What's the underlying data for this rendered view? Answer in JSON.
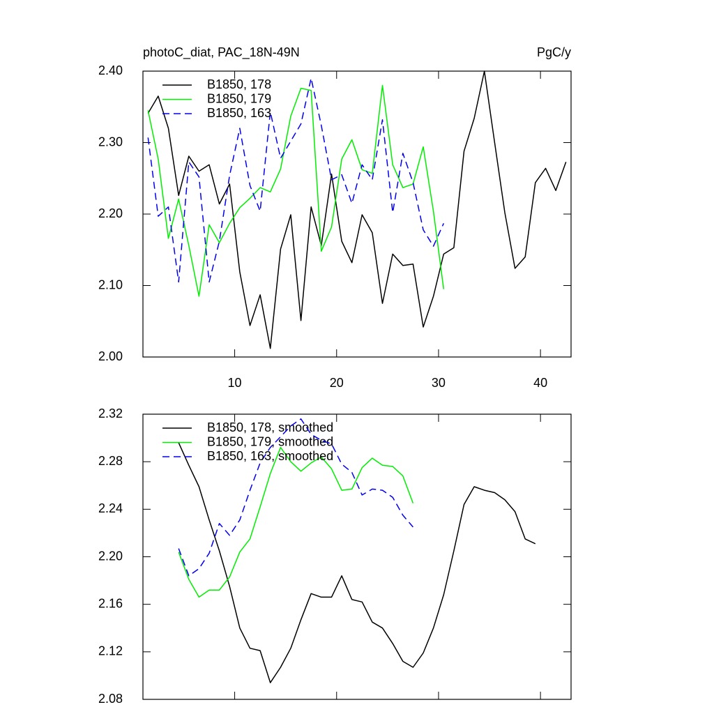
{
  "chart_data": [
    {
      "type": "line",
      "title": "photoC_diat, PAC_18N-49N",
      "units": "PgC/y",
      "xlim": [
        1,
        43
      ],
      "xticks": [
        10,
        20,
        30,
        40
      ],
      "xtick_labels": true,
      "ylim": [
        2.0,
        2.4
      ],
      "yticks": [
        {
          "value": 2.0,
          "label": "2.00"
        },
        {
          "value": 2.1,
          "label": "2.10"
        },
        {
          "value": 2.2,
          "label": "2.20"
        },
        {
          "value": 2.3,
          "label": "2.30"
        },
        {
          "value": 2.4,
          "label": "2.40"
        }
      ],
      "legend": "upper left",
      "series": [
        {
          "name": "B1850, 178",
          "color": "#000000",
          "dash": false,
          "x": [
            1.5,
            2.5,
            3.5,
            4.5,
            5.5,
            6.5,
            7.5,
            8.5,
            9.5,
            10.5,
            11.5,
            12.5,
            13.5,
            14.5,
            15.5,
            16.5,
            17.5,
            18.5,
            19.5,
            20.5,
            21.5,
            22.5,
            23.5,
            24.5,
            25.5,
            26.5,
            27.5,
            28.5,
            29.5,
            30.5,
            31.5,
            32.5,
            33.5,
            34.5,
            35.5,
            36.5,
            37.5,
            38.5,
            39.5,
            40.5,
            41.5,
            42.5
          ],
          "values": [
            2.341,
            2.365,
            2.32,
            2.226,
            2.281,
            2.26,
            2.269,
            2.214,
            2.242,
            2.119,
            2.044,
            2.087,
            2.012,
            2.151,
            2.199,
            2.051,
            2.21,
            2.156,
            2.256,
            2.162,
            2.132,
            2.199,
            2.174,
            2.075,
            2.144,
            2.128,
            2.13,
            2.042,
            2.085,
            2.144,
            2.153,
            2.288,
            2.334,
            2.4,
            2.3,
            2.202,
            2.124,
            2.14,
            2.244,
            2.264,
            2.233,
            2.273
          ]
        },
        {
          "name": "B1850, 179",
          "color": "#00ee00",
          "dash": false,
          "x": [
            1.5,
            2.5,
            3.5,
            4.5,
            5.5,
            6.5,
            7.5,
            8.5,
            9.5,
            10.5,
            11.5,
            12.5,
            13.5,
            14.5,
            15.5,
            16.5,
            17.5,
            18.5,
            19.5,
            20.5,
            21.5,
            22.5,
            23.5,
            24.5,
            25.5,
            26.5,
            27.5,
            28.5,
            29.5,
            30.5
          ],
          "values": [
            2.345,
            2.277,
            2.166,
            2.221,
            2.156,
            2.085,
            2.185,
            2.16,
            2.187,
            2.209,
            2.222,
            2.237,
            2.231,
            2.263,
            2.337,
            2.376,
            2.373,
            2.148,
            2.182,
            2.277,
            2.304,
            2.262,
            2.257,
            2.38,
            2.269,
            2.237,
            2.242,
            2.294,
            2.204,
            2.095
          ]
        },
        {
          "name": "B1850, 163",
          "color": "#0000ee",
          "dash": true,
          "x": [
            1.5,
            2.5,
            3.5,
            4.5,
            5.5,
            6.5,
            7.5,
            8.5,
            9.5,
            10.5,
            11.5,
            12.5,
            13.5,
            14.5,
            15.5,
            16.5,
            17.5,
            18.5,
            19.5,
            20.5,
            21.5,
            22.5,
            23.5,
            24.5,
            25.5,
            26.5,
            27.5,
            28.5,
            29.5,
            30.5
          ],
          "values": [
            2.307,
            2.197,
            2.21,
            2.105,
            2.273,
            2.252,
            2.105,
            2.162,
            2.254,
            2.32,
            2.24,
            2.204,
            2.343,
            2.278,
            2.302,
            2.326,
            2.39,
            2.324,
            2.248,
            2.255,
            2.215,
            2.269,
            2.248,
            2.332,
            2.202,
            2.285,
            2.244,
            2.178,
            2.155,
            2.187
          ]
        }
      ]
    },
    {
      "type": "line",
      "xlim": [
        1,
        43
      ],
      "xticks": [
        10,
        20,
        30,
        40
      ],
      "xtick_labels": false,
      "ylim": [
        2.08,
        2.32
      ],
      "yticks": [
        {
          "value": 2.08,
          "label": "2.08"
        },
        {
          "value": 2.12,
          "label": "2.12"
        },
        {
          "value": 2.16,
          "label": "2.16"
        },
        {
          "value": 2.2,
          "label": "2.20"
        },
        {
          "value": 2.24,
          "label": "2.24"
        },
        {
          "value": 2.28,
          "label": "2.28"
        },
        {
          "value": 2.32,
          "label": "2.32"
        }
      ],
      "legend": "upper left",
      "series": [
        {
          "name": "B1850, 178, smoothed",
          "color": "#000000",
          "dash": false,
          "x": [
            4.5,
            5.5,
            6.5,
            7.5,
            8.5,
            9.5,
            10.5,
            11.5,
            12.5,
            13.5,
            14.5,
            15.5,
            16.5,
            17.5,
            18.5,
            19.5,
            20.5,
            21.5,
            22.5,
            23.5,
            24.5,
            25.5,
            26.5,
            27.5,
            28.5,
            29.5,
            30.5,
            31.5,
            32.5,
            33.5,
            34.5,
            35.5,
            36.5,
            37.5,
            38.5,
            39.5
          ],
          "values": [
            2.296,
            2.277,
            2.259,
            2.231,
            2.205,
            2.175,
            2.14,
            2.123,
            2.121,
            2.094,
            2.107,
            2.123,
            2.147,
            2.169,
            2.166,
            2.166,
            2.184,
            2.164,
            2.162,
            2.145,
            2.14,
            2.127,
            2.112,
            2.107,
            2.119,
            2.14,
            2.168,
            2.205,
            2.244,
            2.259,
            2.256,
            2.254,
            2.248,
            2.238,
            2.215,
            2.211
          ]
        },
        {
          "name": "B1850, 179, smoothed",
          "color": "#00ee00",
          "dash": false,
          "x": [
            4.5,
            5.5,
            6.5,
            7.5,
            8.5,
            9.5,
            10.5,
            11.5,
            12.5,
            13.5,
            14.5,
            15.5,
            16.5,
            17.5,
            18.5,
            19.5,
            20.5,
            21.5,
            22.5,
            23.5,
            24.5,
            25.5,
            26.5,
            27.5
          ],
          "values": [
            2.204,
            2.181,
            2.166,
            2.172,
            2.172,
            2.183,
            2.204,
            2.215,
            2.242,
            2.27,
            2.292,
            2.28,
            2.272,
            2.279,
            2.284,
            2.274,
            2.256,
            2.257,
            2.275,
            2.283,
            2.277,
            2.276,
            2.268,
            2.245
          ]
        },
        {
          "name": "B1850, 163, smoothed",
          "color": "#0000ee",
          "dash": true,
          "x": [
            4.5,
            5.5,
            6.5,
            7.5,
            8.5,
            9.5,
            10.5,
            11.5,
            12.5,
            13.5,
            14.5,
            15.5,
            16.5,
            17.5,
            18.5,
            19.5,
            20.5,
            21.5,
            22.5,
            23.5,
            24.5,
            25.5,
            26.5,
            27.5
          ],
          "values": [
            2.207,
            2.184,
            2.19,
            2.203,
            2.228,
            2.218,
            2.231,
            2.256,
            2.279,
            2.292,
            2.301,
            2.31,
            2.316,
            2.303,
            2.298,
            2.295,
            2.278,
            2.271,
            2.252,
            2.257,
            2.256,
            2.25,
            2.235,
            2.225
          ]
        }
      ]
    }
  ]
}
